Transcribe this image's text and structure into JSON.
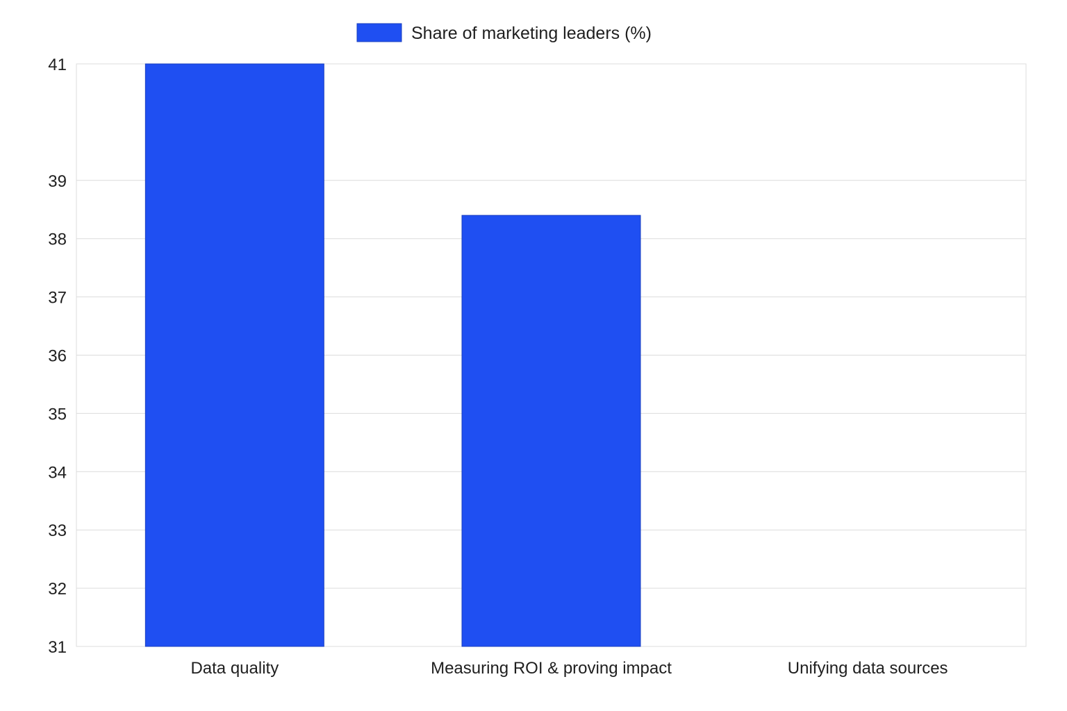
{
  "chart_data": {
    "type": "bar",
    "categories": [
      "Data quality",
      "Measuring ROI & proving impact",
      "Unifying data sources"
    ],
    "series": [
      {
        "name": "Share of marketing leaders (%)",
        "values": [
          41,
          38.4,
          31
        ],
        "color": "#1f4ff2"
      }
    ],
    "yticks": [
      31,
      32,
      33,
      34,
      35,
      36,
      37,
      38,
      39,
      41
    ],
    "ylim": [
      31,
      41
    ],
    "grid": true,
    "legend_position": "top-center",
    "title": "",
    "xlabel": "",
    "ylabel": ""
  },
  "colors": {
    "bar": "#1f4ff2",
    "bar_stroke": "#1a3fbf",
    "grid": "#dcdcdc",
    "text": "#1f1f1f"
  }
}
